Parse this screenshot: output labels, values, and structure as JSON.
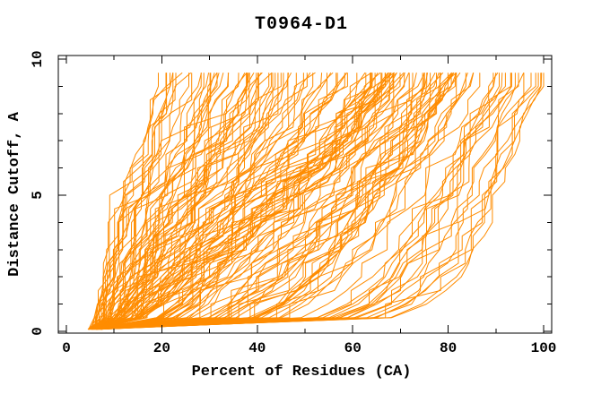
{
  "chart_data": {
    "type": "line",
    "title": "T0964-D1",
    "xlabel": "Percent of Residues (CA)",
    "ylabel": "Distance Cutoff, A",
    "xlim": [
      0,
      100
    ],
    "ylim": [
      0,
      10
    ],
    "grid": false,
    "legend": null,
    "x_major_ticks": [
      0,
      20,
      40,
      60,
      80,
      100
    ],
    "x_minor_ticks": [
      10,
      30,
      50,
      70,
      90
    ],
    "x_tick_labels": [
      "0",
      "20",
      "40",
      "60",
      "80",
      "100"
    ],
    "y_major_ticks": [
      0,
      5,
      10
    ],
    "y_minor_ticks": [
      1,
      2,
      3,
      4,
      6,
      7,
      8,
      9
    ],
    "y_tick_labels": [
      "0",
      "5",
      "10"
    ],
    "line_color": "#ff8c00",
    "axis_color": "#000000",
    "background_color": "#ffffff",
    "num_models": 150,
    "cutoffs": [
      0.5,
      1.0,
      1.5,
      2.0,
      2.5,
      3.0,
      3.5,
      4.0,
      4.5,
      5.0,
      5.5,
      6.0,
      6.5,
      7.0,
      7.5,
      8.0,
      8.5,
      9.0,
      9.5
    ],
    "start_cutoff": 0.08,
    "start_x_range": [
      4.5,
      7.5
    ],
    "envelope": {
      "worst": [
        6,
        6.5,
        7,
        7.5,
        8,
        8.5,
        9,
        10,
        11,
        12,
        13,
        14,
        15,
        16,
        17,
        18,
        19,
        20,
        21
      ],
      "median": [
        16,
        20,
        23,
        26,
        29,
        32,
        35,
        38,
        41,
        44,
        47,
        50,
        53,
        56,
        58,
        60,
        62,
        64,
        66
      ],
      "best": [
        68,
        75,
        79,
        82,
        84,
        86,
        87,
        88,
        89,
        90,
        91,
        92,
        93,
        94,
        95,
        96,
        98,
        100,
        100
      ]
    }
  }
}
